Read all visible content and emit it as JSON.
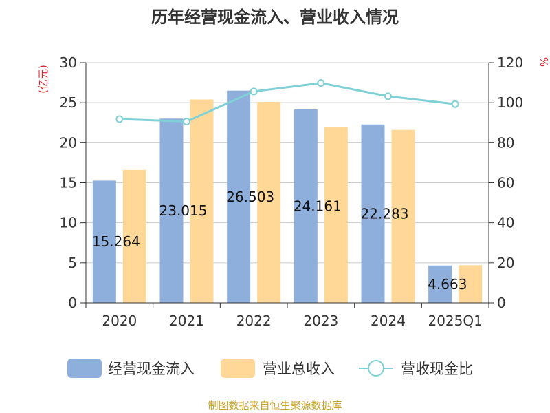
{
  "chart_data": {
    "type": "bar",
    "title": "历年经营现金流入、营业收入情况",
    "categories": [
      "2020",
      "2021",
      "2022",
      "2023",
      "2024",
      "2025Q1"
    ],
    "y_left_unit": "(亿元)",
    "y_right_unit": "%",
    "y_left_lim": [
      0,
      30
    ],
    "y_left_ticks": [
      "0",
      "5",
      "10",
      "15",
      "20",
      "25",
      "30"
    ],
    "y_right_lim": [
      0,
      120
    ],
    "y_right_ticks": [
      "0",
      "20",
      "40",
      "60",
      "80",
      "100",
      "120"
    ],
    "grid": true,
    "legend_position": "bottom",
    "series": [
      {
        "name": "经营现金流入",
        "kind": "bar",
        "axis": "left",
        "color": "#8eaedb",
        "values": [
          15.264,
          23.015,
          26.503,
          24.161,
          22.283,
          4.663
        ],
        "labels": [
          "15.264",
          "23.015",
          "26.503",
          "24.161",
          "22.283",
          "4.663"
        ]
      },
      {
        "name": "营业总收入",
        "kind": "bar",
        "axis": "left",
        "color": "#ffd897",
        "values": [
          16.6,
          25.4,
          25.1,
          22.0,
          21.6,
          4.7
        ]
      },
      {
        "name": "营收现金比",
        "kind": "line",
        "axis": "right",
        "color": "#7fd1d6",
        "values": [
          91.8,
          90.6,
          105.6,
          109.8,
          103.2,
          99.3
        ]
      }
    ]
  },
  "source": "制图数据来自恒生聚源数据库"
}
